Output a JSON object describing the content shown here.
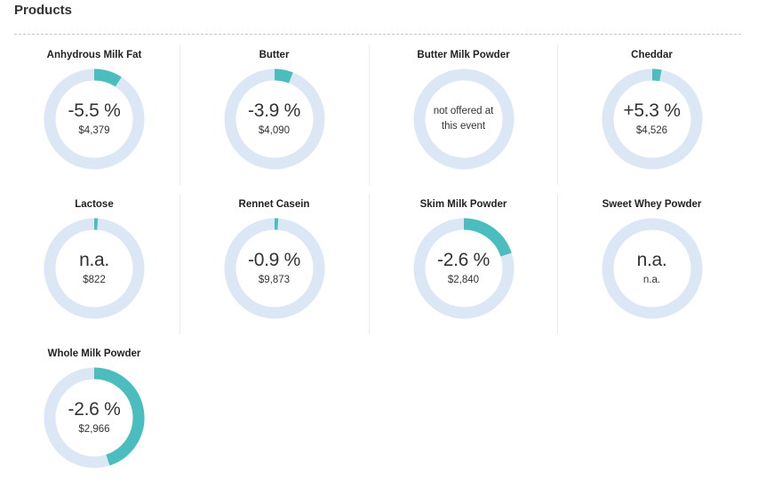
{
  "section": {
    "title": "Products"
  },
  "colors": {
    "track": "#dce7f6",
    "fill": "#4cbdbe"
  },
  "products": [
    {
      "name": "Anhydrous Milk Fat",
      "change": "-5.5 %",
      "price": "$4,379",
      "fraction": 0.092
    },
    {
      "name": "Butter",
      "change": "-3.9 %",
      "price": "$4,090",
      "fraction": 0.06
    },
    {
      "name": "Butter Milk Powder",
      "note": "not offered at this event",
      "fraction": 0
    },
    {
      "name": "Cheddar",
      "change": "+5.3 %",
      "price": "$4,526",
      "fraction": 0.03
    },
    {
      "name": "Lactose",
      "change": "n.a.",
      "price": "$822",
      "fraction": 0.012
    },
    {
      "name": "Rennet Casein",
      "change": "-0.9 %",
      "price": "$9,873",
      "fraction": 0.012
    },
    {
      "name": "Skim Milk Powder",
      "change": "-2.6 %",
      "price": "$2,840",
      "fraction": 0.2
    },
    {
      "name": "Sweet Whey Powder",
      "change": "n.a.",
      "price": "n.a.",
      "fraction": 0
    },
    {
      "name": "Whole Milk Powder",
      "change": "-2.6 %",
      "price": "$2,966",
      "fraction": 0.45
    }
  ]
}
